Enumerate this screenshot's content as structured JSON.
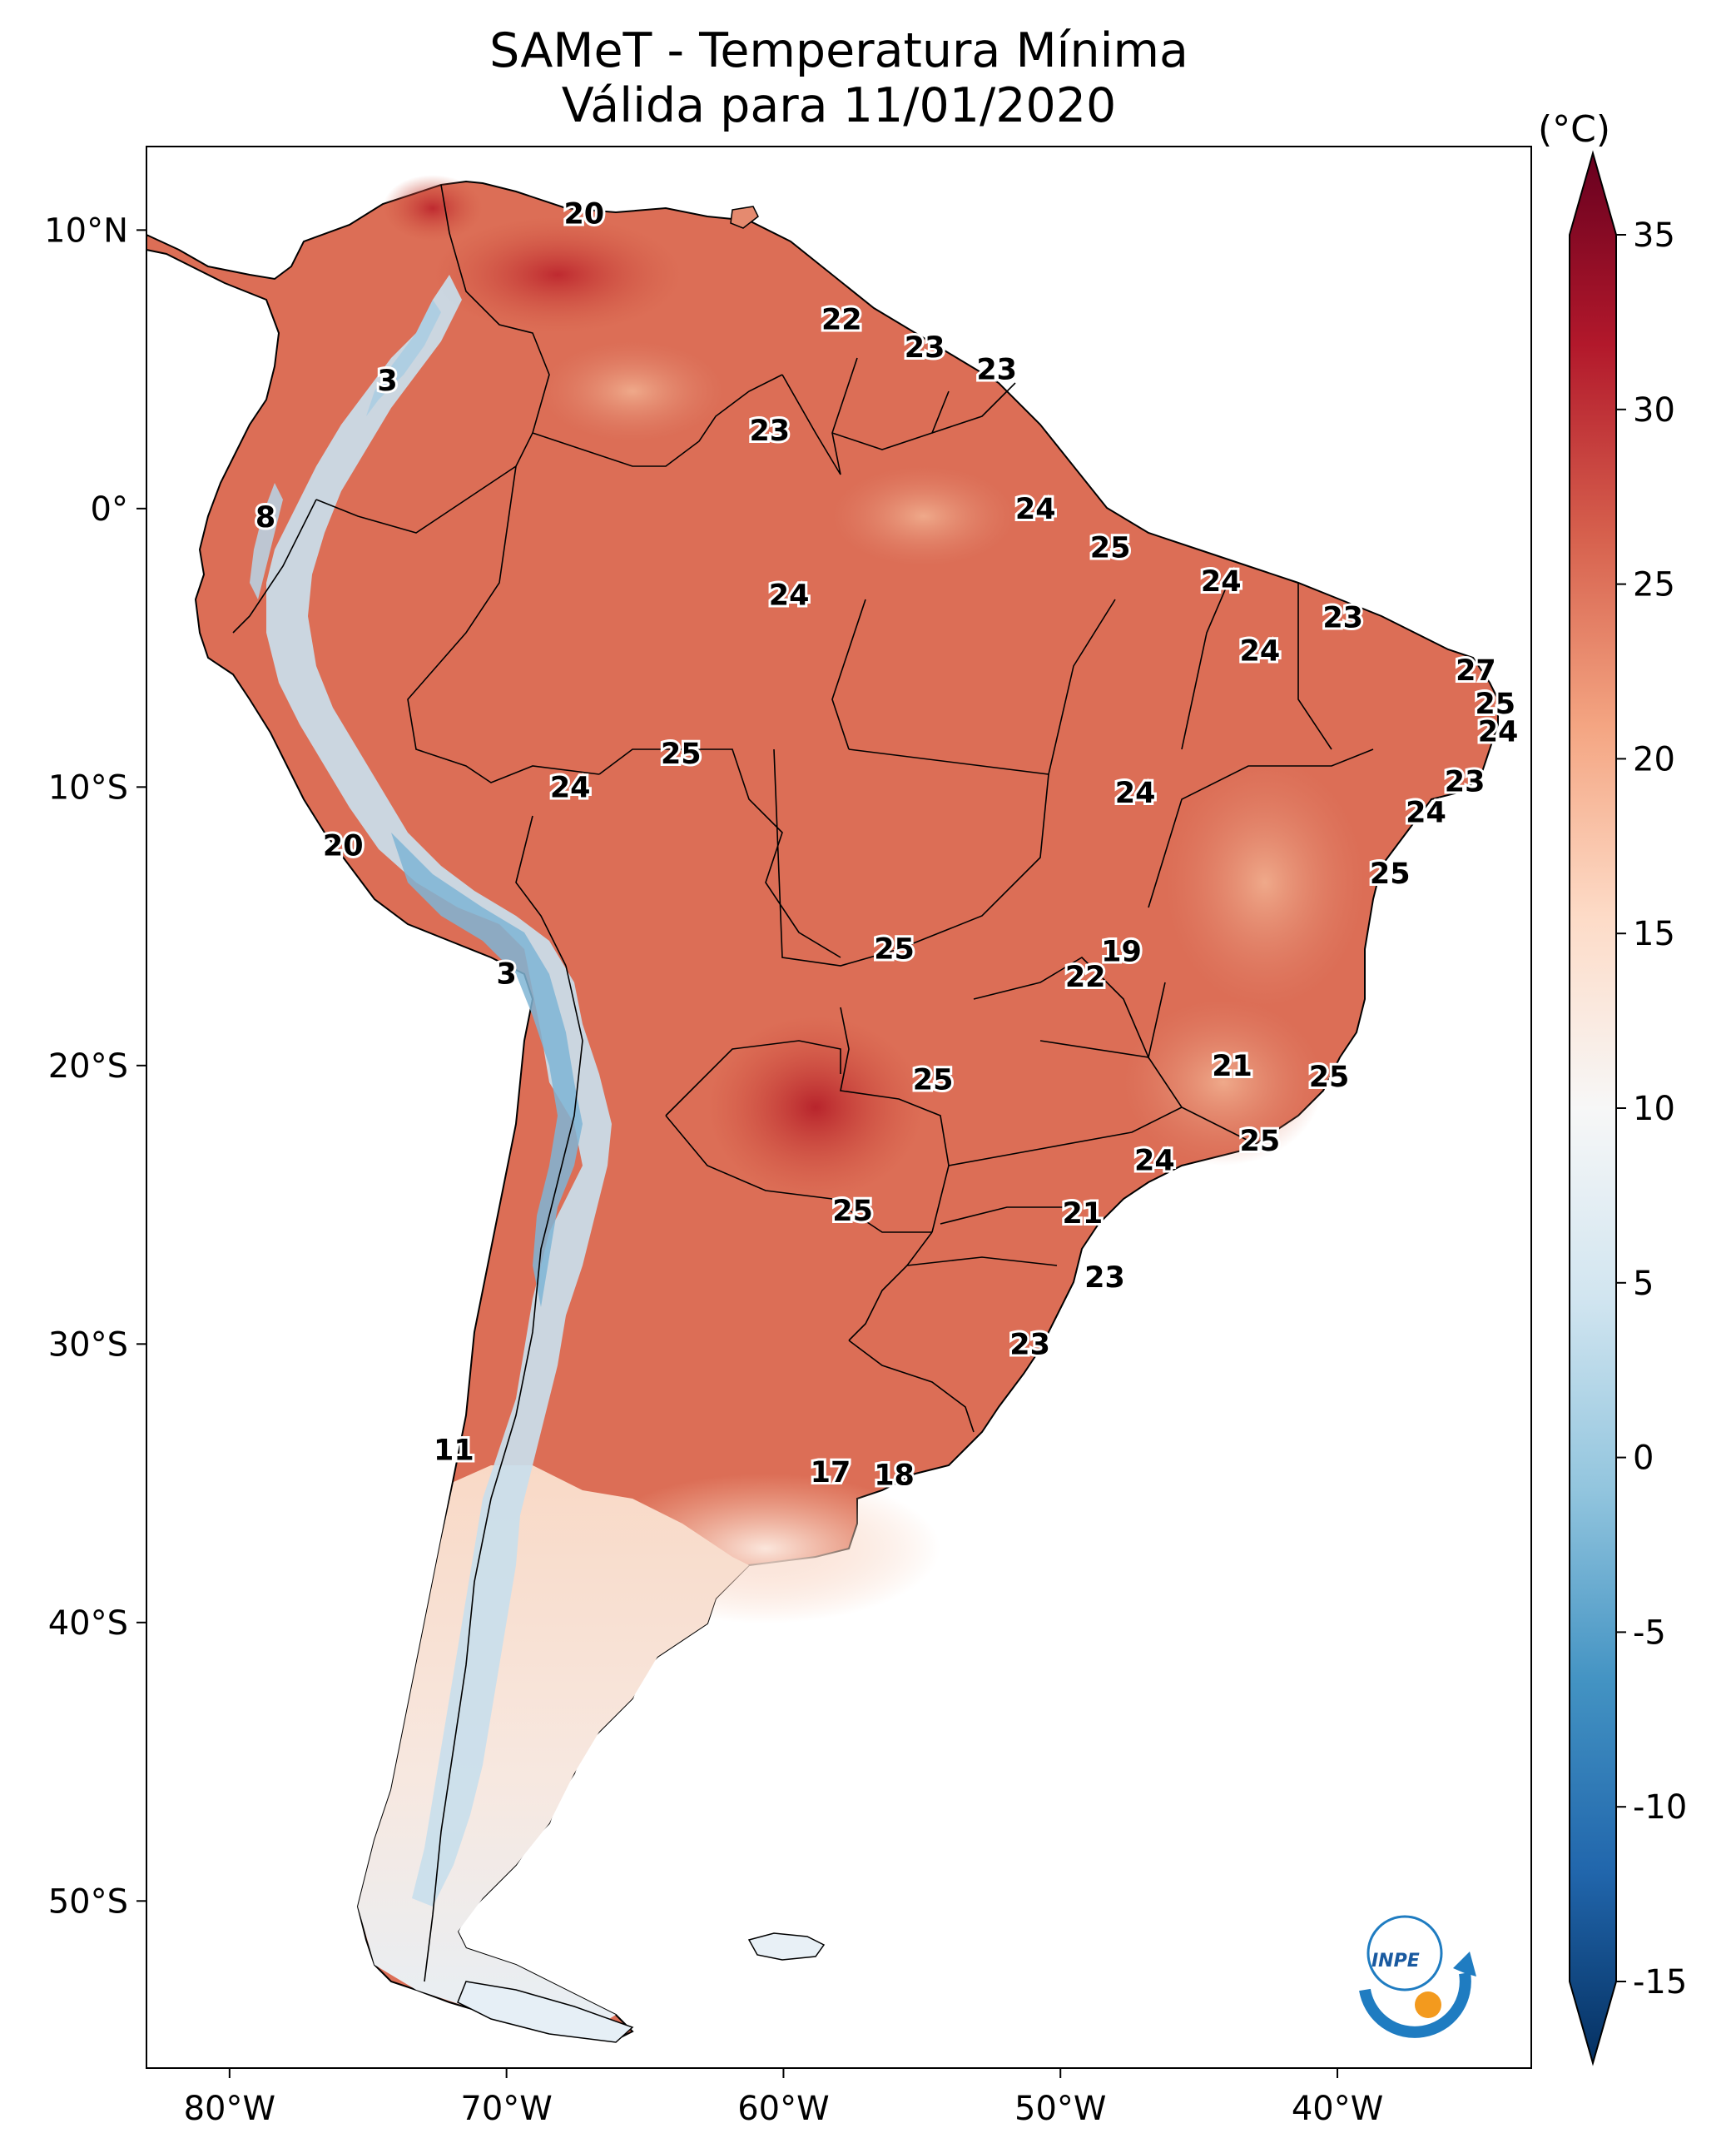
{
  "title": "SAMeT - Temperatura Mínima",
  "subtitle": "Válida para 11/01/2020",
  "colorbar": {
    "unit": "(°C)",
    "min": -15,
    "max": 35,
    "ticks": [
      "35",
      "30",
      "25",
      "20",
      "15",
      "10",
      "5",
      "0",
      "-5",
      "-10",
      "-15"
    ],
    "cmap": "RdBu_r",
    "colors": [
      "#053061",
      "#2166ac",
      "#4393c3",
      "#92c5de",
      "#d1e5f0",
      "#f7f7f7",
      "#fddbc7",
      "#f4a582",
      "#d6604d",
      "#b2182b",
      "#67001f"
    ]
  },
  "axes": {
    "lon_labels": [
      "80°W",
      "70°W",
      "60°W",
      "50°W",
      "40°W"
    ],
    "lat_labels": [
      "10°N",
      "0°",
      "10°S",
      "20°S",
      "30°S",
      "40°S",
      "50°S"
    ],
    "lon_range": [
      -83,
      -33
    ],
    "lat_range": [
      -56,
      13
    ]
  },
  "contour_labels": [
    {
      "value": "20",
      "lon": -67.2,
      "lat": 10.6
    },
    {
      "value": "22",
      "lon": -57.9,
      "lat": 6.8
    },
    {
      "value": "23",
      "lon": -54.9,
      "lat": 5.8
    },
    {
      "value": "23",
      "lon": -52.3,
      "lat": 5.0
    },
    {
      "value": "3",
      "lon": -74.3,
      "lat": 4.6
    },
    {
      "value": "23",
      "lon": -60.5,
      "lat": 2.8
    },
    {
      "value": "8",
      "lon": -78.7,
      "lat": -0.3
    },
    {
      "value": "24",
      "lon": -50.9,
      "lat": 0.0
    },
    {
      "value": "25",
      "lon": -48.2,
      "lat": -1.4
    },
    {
      "value": "24",
      "lon": -44.2,
      "lat": -2.6
    },
    {
      "value": "24",
      "lon": -59.8,
      "lat": -3.1
    },
    {
      "value": "23",
      "lon": -39.8,
      "lat": -3.9
    },
    {
      "value": "24",
      "lon": -42.8,
      "lat": -5.1
    },
    {
      "value": "27",
      "lon": -35.0,
      "lat": -5.8
    },
    {
      "value": "25",
      "lon": -34.3,
      "lat": -7.0
    },
    {
      "value": "24",
      "lon": -34.2,
      "lat": -8.0
    },
    {
      "value": "25",
      "lon": -63.7,
      "lat": -8.8
    },
    {
      "value": "23",
      "lon": -35.4,
      "lat": -9.8
    },
    {
      "value": "24",
      "lon": -67.7,
      "lat": -10.0
    },
    {
      "value": "24",
      "lon": -47.3,
      "lat": -10.2
    },
    {
      "value": "24",
      "lon": -36.8,
      "lat": -10.9
    },
    {
      "value": "20",
      "lon": -75.9,
      "lat": -12.1
    },
    {
      "value": "25",
      "lon": -38.1,
      "lat": -13.1
    },
    {
      "value": "25",
      "lon": -56.0,
      "lat": -15.8
    },
    {
      "value": "19",
      "lon": -47.8,
      "lat": -15.9
    },
    {
      "value": "22",
      "lon": -49.1,
      "lat": -16.8
    },
    {
      "value": "3",
      "lon": -70.0,
      "lat": -16.7
    },
    {
      "value": "21",
      "lon": -43.8,
      "lat": -20.0
    },
    {
      "value": "25",
      "lon": -40.3,
      "lat": -20.4
    },
    {
      "value": "25",
      "lon": -54.6,
      "lat": -20.5
    },
    {
      "value": "25",
      "lon": -42.8,
      "lat": -22.7
    },
    {
      "value": "24",
      "lon": -46.6,
      "lat": -23.4
    },
    {
      "value": "25",
      "lon": -57.5,
      "lat": -25.2
    },
    {
      "value": "21",
      "lon": -49.2,
      "lat": -25.3
    },
    {
      "value": "23",
      "lon": -48.4,
      "lat": -27.6
    },
    {
      "value": "23",
      "lon": -51.1,
      "lat": -30.0
    },
    {
      "value": "11",
      "lon": -71.9,
      "lat": -33.8
    },
    {
      "value": "17",
      "lon": -58.3,
      "lat": -34.6
    },
    {
      "value": "18",
      "lon": -56.0,
      "lat": -34.7
    }
  ],
  "logo": {
    "text": "INPE"
  }
}
